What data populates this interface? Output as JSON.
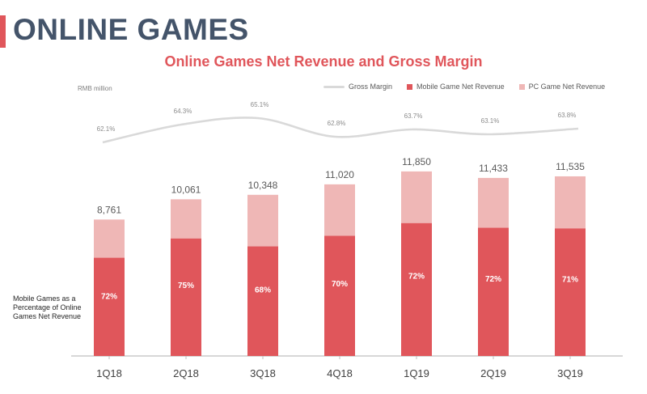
{
  "section_title": "ONLINE GAMES",
  "side_note": "Mobile Games as a Percentage of Online Games Net Revenue",
  "colors": {
    "accent": "#e0565b",
    "pc": "#efb7b6",
    "margin_line": "#d9d9d9",
    "title_dark": "#44546a"
  },
  "chart_data": {
    "type": "bar",
    "stacked": true,
    "title": "Online Games Net Revenue and Gross Margin",
    "ylabel": "RMB million",
    "categories": [
      "1Q18",
      "2Q18",
      "3Q18",
      "4Q18",
      "1Q19",
      "2Q19",
      "3Q19"
    ],
    "totals": [
      "8,761",
      "10,061",
      "10,348",
      "11,020",
      "11,850",
      "11,433",
      "11,535"
    ],
    "total_values": [
      8761,
      10061,
      10348,
      11020,
      11850,
      11433,
      11535
    ],
    "mobile_share_labels": [
      "72%",
      "75%",
      "68%",
      "70%",
      "72%",
      "72%",
      "71%"
    ],
    "mobile_share": [
      0.72,
      0.75,
      0.68,
      0.7,
      0.72,
      0.72,
      0.71
    ],
    "series": [
      {
        "name": "Mobile Game Net Revenue",
        "color": "#e0565b"
      },
      {
        "name": "PC Game Net Revenue",
        "color": "#efb7b6"
      }
    ],
    "gross_margin": {
      "name": "Gross Margin",
      "labels": [
        "62.1%",
        "64.3%",
        "65.1%",
        "62.8%",
        "63.7%",
        "63.1%",
        "63.8%"
      ],
      "values": [
        62.1,
        64.3,
        65.1,
        62.8,
        63.7,
        63.1,
        63.8
      ]
    },
    "legend_position": "top-right",
    "grid": false
  }
}
